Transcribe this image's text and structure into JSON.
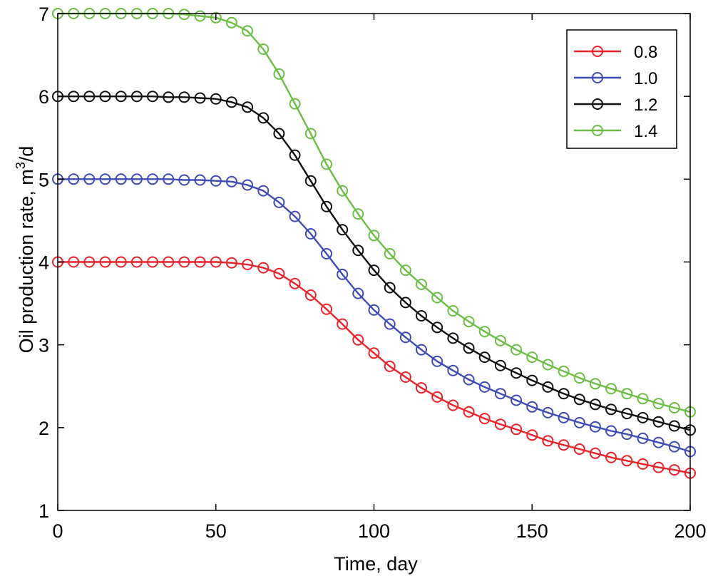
{
  "chart_data": {
    "type": "line",
    "title": "",
    "xlabel": "Time, day",
    "ylabel_main": "Oil production rate, m",
    "ylabel_sup": "3",
    "ylabel_tail": "/d",
    "xlim": [
      0,
      200
    ],
    "ylim": [
      1,
      7
    ],
    "xticks": [
      0,
      50,
      100,
      150,
      200
    ],
    "yticks": [
      1,
      2,
      3,
      4,
      5,
      6,
      7
    ],
    "xtick_labels": [
      "0",
      "50",
      "100",
      "150",
      "200"
    ],
    "ytick_labels": [
      "1",
      "2",
      "3",
      "4",
      "5",
      "6",
      "7"
    ],
    "grid": false,
    "legend_position": "top-right",
    "marker": "circle",
    "x": [
      0,
      5,
      10,
      15,
      20,
      25,
      30,
      35,
      40,
      45,
      50,
      55,
      60,
      65,
      70,
      75,
      80,
      85,
      90,
      95,
      100,
      105,
      110,
      115,
      120,
      125,
      130,
      135,
      140,
      145,
      150,
      155,
      160,
      165,
      170,
      175,
      180,
      185,
      190,
      195,
      200
    ],
    "series": [
      {
        "name": "0.8",
        "color": "#e8232a",
        "values": [
          4.0,
          4.0,
          4.0,
          4.0,
          4.0,
          4.0,
          4.0,
          4.0,
          4.0,
          4.0,
          4.0,
          3.99,
          3.97,
          3.93,
          3.86,
          3.74,
          3.6,
          3.43,
          3.25,
          3.06,
          2.9,
          2.74,
          2.61,
          2.48,
          2.37,
          2.27,
          2.19,
          2.11,
          2.04,
          1.98,
          1.91,
          1.84,
          1.79,
          1.74,
          1.69,
          1.64,
          1.6,
          1.56,
          1.52,
          1.49,
          1.45
        ]
      },
      {
        "name": "1.0",
        "color": "#3c4bb5",
        "values": [
          5.0,
          5.0,
          5.0,
          5.0,
          5.0,
          5.0,
          5.0,
          5.0,
          4.99,
          4.99,
          4.98,
          4.97,
          4.93,
          4.86,
          4.72,
          4.55,
          4.34,
          4.1,
          3.85,
          3.62,
          3.42,
          3.25,
          3.09,
          2.94,
          2.8,
          2.69,
          2.58,
          2.49,
          2.41,
          2.33,
          2.25,
          2.18,
          2.12,
          2.06,
          2.01,
          1.96,
          1.92,
          1.87,
          1.82,
          1.77,
          1.71
        ]
      },
      {
        "name": "1.2",
        "color": "#111111",
        "values": [
          6.0,
          6.0,
          6.0,
          6.0,
          6.0,
          6.0,
          6.0,
          5.99,
          5.99,
          5.98,
          5.97,
          5.93,
          5.87,
          5.74,
          5.55,
          5.29,
          4.98,
          4.67,
          4.39,
          4.14,
          3.9,
          3.69,
          3.51,
          3.35,
          3.21,
          3.08,
          2.96,
          2.85,
          2.75,
          2.66,
          2.57,
          2.49,
          2.41,
          2.34,
          2.28,
          2.22,
          2.17,
          2.12,
          2.07,
          2.02,
          1.97
        ]
      },
      {
        "name": "1.4",
        "color": "#6bbd45",
        "values": [
          7.0,
          7.0,
          7.0,
          7.0,
          7.0,
          7.0,
          7.0,
          7.0,
          6.99,
          6.97,
          6.95,
          6.89,
          6.79,
          6.57,
          6.27,
          5.91,
          5.55,
          5.18,
          4.86,
          4.58,
          4.32,
          4.1,
          3.9,
          3.73,
          3.57,
          3.41,
          3.28,
          3.16,
          3.05,
          2.94,
          2.85,
          2.76,
          2.68,
          2.6,
          2.53,
          2.47,
          2.41,
          2.35,
          2.29,
          2.24,
          2.19
        ]
      }
    ]
  }
}
